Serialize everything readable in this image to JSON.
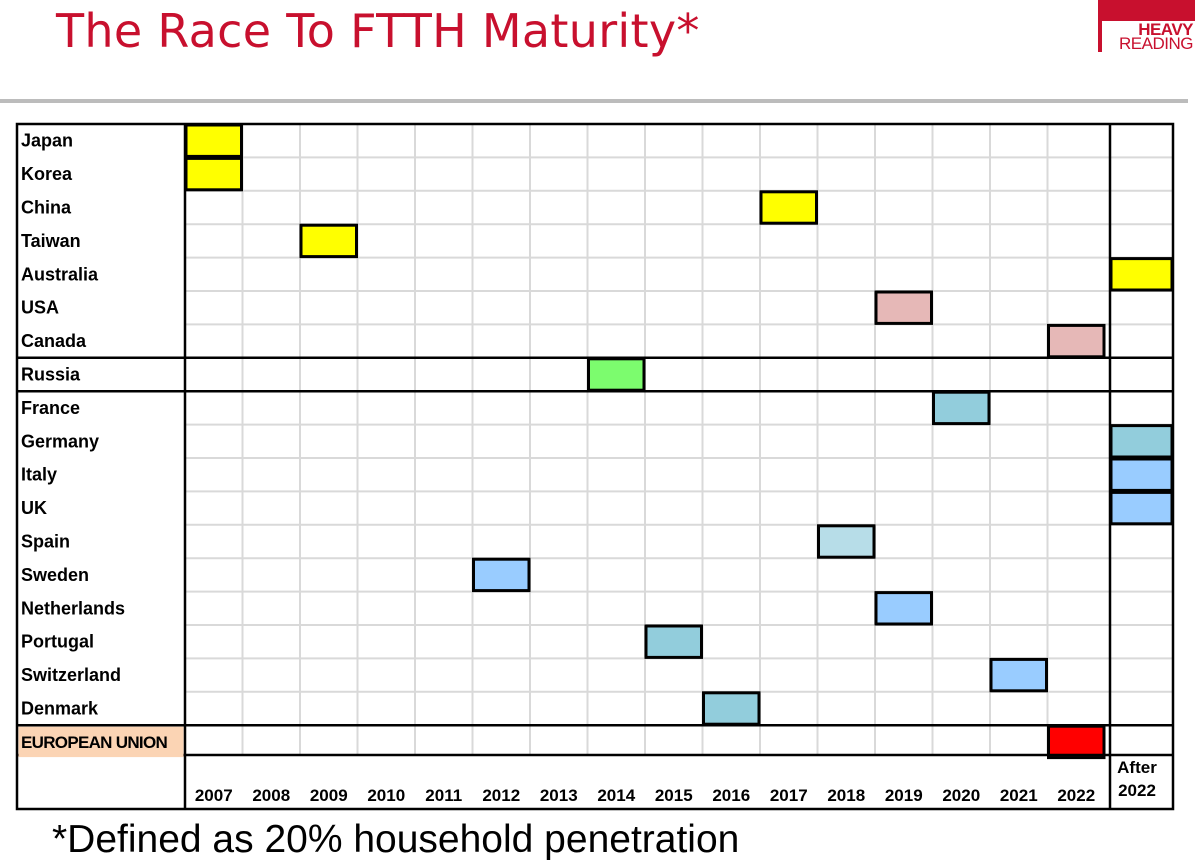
{
  "slide": {
    "title": "The Race To FTTH Maturity*",
    "footnote": "*Defined as 20% household penetration",
    "logo": {
      "line1": "HEAVY",
      "line2": "READING"
    }
  },
  "colors": {
    "title": "#c8102e",
    "yellow": "#ffff00",
    "pink": "#e6b8b7",
    "green": "#7cfc6e",
    "teal": "#92cddc",
    "light_blue": "#b7dde8",
    "blue": "#99ccff",
    "red": "#ff0000",
    "eu_label_bg": "#fbd4b4"
  },
  "chart_data": {
    "type": "table",
    "columns": [
      "2007",
      "2008",
      "2009",
      "2010",
      "2011",
      "2012",
      "2013",
      "2014",
      "2015",
      "2016",
      "2017",
      "2018",
      "2019",
      "2020",
      "2021",
      "2022",
      "After 2022"
    ],
    "rows": [
      {
        "name": "Japan",
        "year": "2007",
        "color": "yellow",
        "group": "asia-pacific-americas"
      },
      {
        "name": "Korea",
        "year": "2007",
        "color": "yellow",
        "group": "asia-pacific-americas"
      },
      {
        "name": "China",
        "year": "2017",
        "color": "yellow",
        "group": "asia-pacific-americas"
      },
      {
        "name": "Taiwan",
        "year": "2009",
        "color": "yellow",
        "group": "asia-pacific-americas"
      },
      {
        "name": "Australia",
        "year": "After 2022",
        "color": "yellow",
        "group": "asia-pacific-americas"
      },
      {
        "name": "USA",
        "year": "2019",
        "color": "pink",
        "group": "asia-pacific-americas"
      },
      {
        "name": "Canada",
        "year": "2022",
        "color": "pink",
        "group": "asia-pacific-americas"
      },
      {
        "name": "Russia",
        "year": "2014",
        "color": "green",
        "group": "russia"
      },
      {
        "name": "France",
        "year": "2020",
        "color": "teal",
        "group": "europe"
      },
      {
        "name": "Germany",
        "year": "After 2022",
        "color": "teal",
        "group": "europe"
      },
      {
        "name": "Italy",
        "year": "After 2022",
        "color": "blue",
        "group": "europe"
      },
      {
        "name": "UK",
        "year": "After 2022",
        "color": "blue",
        "group": "europe"
      },
      {
        "name": "Spain",
        "year": "2018",
        "color": "light_blue",
        "group": "europe"
      },
      {
        "name": "Sweden",
        "year": "2012",
        "color": "blue",
        "group": "europe"
      },
      {
        "name": "Netherlands",
        "year": "2019",
        "color": "blue",
        "group": "europe"
      },
      {
        "name": "Portugal",
        "year": "2015",
        "color": "teal",
        "group": "europe"
      },
      {
        "name": "Switzerland",
        "year": "2021",
        "color": "blue",
        "group": "europe"
      },
      {
        "name": "Denmark",
        "year": "2016",
        "color": "teal",
        "group": "europe"
      },
      {
        "name": "EUROPEAN UNION",
        "year": "2022",
        "color": "red",
        "group": "eu"
      }
    ]
  }
}
